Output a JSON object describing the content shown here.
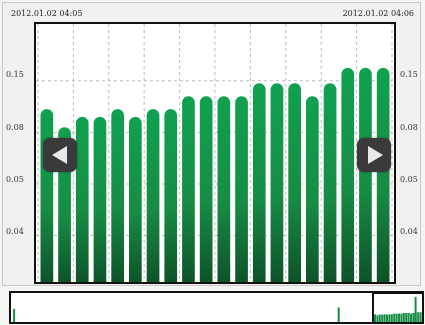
{
  "header": {
    "start_time": "2012.01.02 04:05",
    "end_time": "2012.01.02 04:06"
  },
  "colors": {
    "bar_top": "#10a150",
    "bar_mid": "#178c45",
    "bar_bottom": "#0d4d26",
    "grid": "#bdbdbd",
    "nav_button": "#3a3a3a"
  },
  "axis": {
    "left_ticks": [
      {
        "label": "0.15",
        "value": 0.15
      },
      {
        "label": "0.08",
        "value": 0.08
      },
      {
        "label": "0.05",
        "value": 0.05
      },
      {
        "label": "0.04",
        "value": 0.04
      }
    ],
    "right_ticks": [
      {
        "label": "0.15",
        "value": 0.15
      },
      {
        "label": "0.08",
        "value": 0.08
      },
      {
        "label": "0.05",
        "value": 0.05
      },
      {
        "label": "0.04",
        "value": 0.04
      }
    ]
  },
  "chart_data": {
    "type": "bar",
    "start_time": "2012.01.02 04:05",
    "end_time": "2012.01.02 04:06",
    "values": [
      0.67,
      0.6,
      0.64,
      0.64,
      0.67,
      0.64,
      0.67,
      0.67,
      0.72,
      0.72,
      0.72,
      0.72,
      0.77,
      0.77,
      0.77,
      0.72,
      0.77,
      0.83,
      0.83,
      0.83
    ],
    "ylim": [
      0,
      1
    ],
    "grid": true,
    "overview": {
      "window_start_fraction": 0.87,
      "window_end_fraction": 1.0,
      "spikes": [
        {
          "position": 0.005,
          "value": 0.45
        },
        {
          "position": 0.795,
          "value": 0.5
        },
        {
          "position": 0.98,
          "value": 0.9
        }
      ]
    }
  },
  "nav": {
    "prev_icon": "arrow-left-icon",
    "next_icon": "arrow-right-icon"
  }
}
